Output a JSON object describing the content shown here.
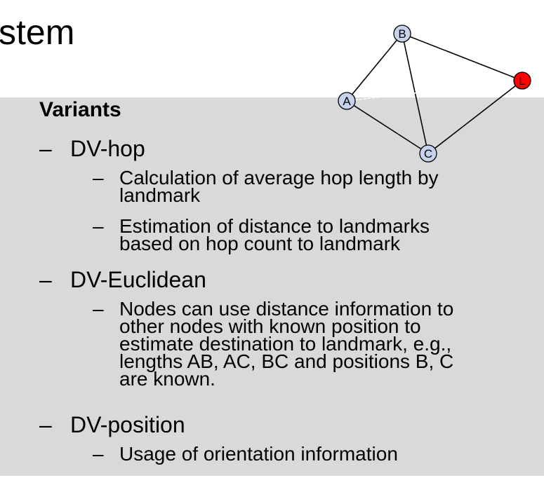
{
  "slide": {
    "title_fragment": "stem",
    "variants_heading": "Variants",
    "dash": "–",
    "items": [
      {
        "label": "DV-hop",
        "subitems": [
          [
            "Calculation of average hop length by",
            "landmark"
          ],
          [
            "Estimation of distance to landmarks",
            "based on hop count to landmark"
          ]
        ]
      },
      {
        "label": "DV-Euclidean",
        "subitems": [
          [
            "Nodes can use distance information to",
            "other nodes with known position to",
            "estimate destination to landmark,  e.g.,",
            "lengths AB, AC, BC and positions B, C",
            "are known."
          ]
        ]
      },
      {
        "label": "DV-position",
        "subitems": [
          [
            "Usage of orientation information"
          ]
        ]
      }
    ]
  },
  "graph": {
    "nodes": [
      {
        "label": "A",
        "color": "#c7d3ec"
      },
      {
        "label": "B",
        "color": "#c7d3ec"
      },
      {
        "label": "C",
        "color": "#c7d3ec"
      },
      {
        "label": "L",
        "color": "#ff0000"
      }
    ],
    "edge_color": "#000000",
    "dashed_edge_color": "#ffffff"
  }
}
